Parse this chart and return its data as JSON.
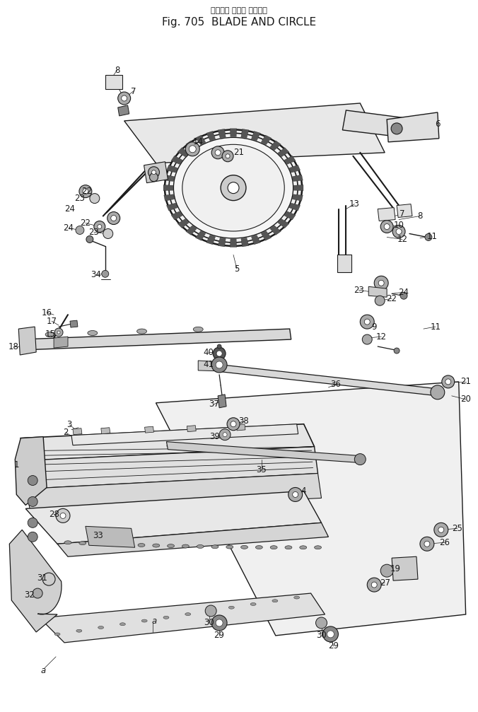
{
  "title_jp": "ブレード および サークル",
  "title_en": "Fig. 705  BLADE AND CIRCLE",
  "bg": "#ffffff",
  "lc": "#1a1a1a",
  "fig_w": 6.76,
  "fig_h": 10.07
}
